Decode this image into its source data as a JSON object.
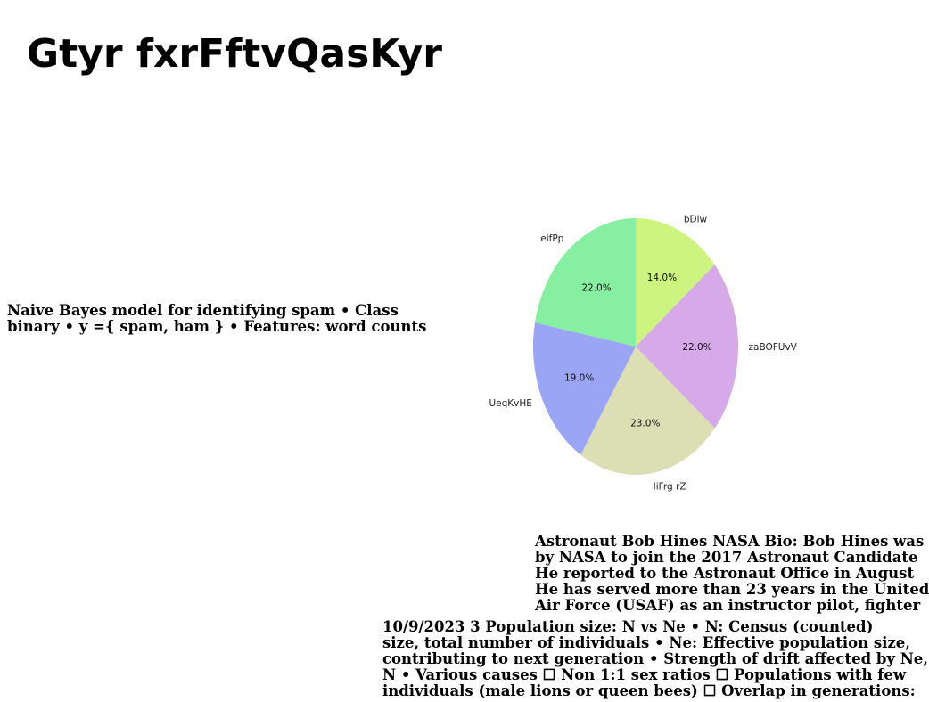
{
  "title": "Gtyr fxrFftvQasKyr",
  "left_text": "Naive Bayes model for identifying spam • Class\nbinary • y ={ spam, ham } • Features: word counts",
  "bio_text": "Astronaut Bob Hines NASA Bio: Bob Hines was\nby NASA to join the 2017 Astronaut Candidate\nHe reported to the Astronaut Office in August\nHe has served more than 23 years in the United\nAir Force (USAF) as an instructor pilot, fighter",
  "pop_text": "10/9/2023 3 Population size: N vs Ne • N: Census (counted)\nsize, total number of individuals • Ne: Effective population size,\ncontributing to next generation • Strength of drift affected by Ne,\nN • Various causes ☐ Non 1:1 sex ratios ☐ Populations with few\nindividuals (male lions or queen bees) ☐ Overlap in generations:",
  "chart_data": {
    "type": "pie",
    "start_angle_deg": 90,
    "direction": "clockwise",
    "slices": [
      {
        "label": "bDlw",
        "value": 14.0,
        "pct_text": "14.0%",
        "color": "#cdf47e"
      },
      {
        "label": "zaBOFUvV",
        "value": 22.0,
        "pct_text": "22.0%",
        "color": "#d6a9e8"
      },
      {
        "label": "liFrg rZ",
        "value": 23.0,
        "pct_text": "23.0%",
        "color": "#dcdeb4"
      },
      {
        "label": "UeqKvHE",
        "value": 19.0,
        "pct_text": "19.0%",
        "color": "#9ba5f5"
      },
      {
        "label": "eifPp",
        "value": 22.0,
        "pct_text": "22.0%",
        "color": "#86efa1"
      }
    ]
  }
}
